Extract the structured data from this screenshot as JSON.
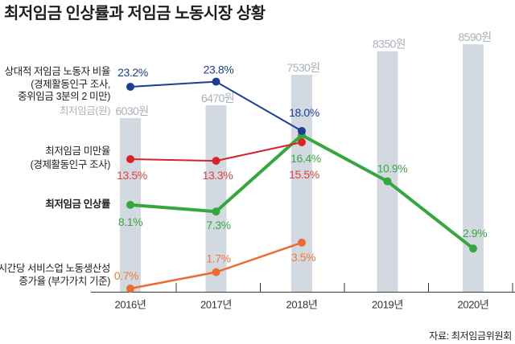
{
  "title": "최저임금 인상률과 저임금 노동시장 상황",
  "source": "자료: 최저임금위원회",
  "legend": {
    "low_wage_ratio": [
      "상대적 저임금 노동자 비율",
      "(경제활동인구 조사,",
      "중위임금 3분의 2 미만)"
    ],
    "min_wage_unit": "최저임금(원)",
    "below_min_rate": [
      "최저임금 미만율",
      "(경제활동인구 조사)"
    ],
    "min_wage_increase": "최저임금 인상률",
    "productivity": [
      "시간당 서비스업 노동생산성",
      "증가율 (부가가치 기준)"
    ]
  },
  "chart_data": {
    "type": "line",
    "title": "최저임금 인상률과 저임금 노동시장 상황",
    "xlabel": "",
    "ylabel": "",
    "grid": false,
    "legend_position": "left",
    "categories": [
      "2016년",
      "2017년",
      "2018년",
      "2019년",
      "2020년"
    ],
    "series": [
      {
        "name": "최저임금(원)",
        "type": "bar",
        "values": [
          6030,
          6470,
          7530,
          8350,
          8590
        ],
        "labels": [
          "6030원",
          "6470원",
          "7530원",
          "8350원",
          "8590원"
        ],
        "color": "#d3d9e1",
        "label_color": "#aab1bb"
      },
      {
        "name": "상대적 저임금 노동자 비율 (경제활동인구 조사, 중위임금 3분의 2 미만)",
        "type": "line",
        "unit": "%",
        "values": [
          23.2,
          23.8,
          18.0,
          null,
          null
        ],
        "labels": [
          "23.2%",
          "23.8%",
          "18.0%"
        ],
        "color": "#1c3f94",
        "label_color": "#1c3f94"
      },
      {
        "name": "최저임금 미만율 (경제활동인구 조사)",
        "type": "line",
        "unit": "%",
        "values": [
          13.5,
          13.3,
          15.5,
          null,
          null
        ],
        "labels": [
          "13.5%",
          "13.3%",
          "15.5%"
        ],
        "color": "#d9232a",
        "label_color": "#e0413a"
      },
      {
        "name": "최저임금 인상률",
        "type": "line",
        "unit": "%",
        "values": [
          8.1,
          7.3,
          16.4,
          10.9,
          2.9
        ],
        "labels": [
          "8.1%",
          "7.3%",
          "16.4%",
          "10.9%",
          "2.9%"
        ],
        "color": "#34a83c",
        "label_color": "#38a842"
      },
      {
        "name": "시간당 서비스업 노동생산성 증가율 (부가가치 기준)",
        "type": "line",
        "unit": "%",
        "values": [
          0.7,
          1.7,
          3.5,
          null,
          null
        ],
        "labels": [
          "0.7%",
          "1.7%",
          "3.5%"
        ],
        "color": "#ee6b2d",
        "label_color": "#f07a3c"
      }
    ]
  }
}
